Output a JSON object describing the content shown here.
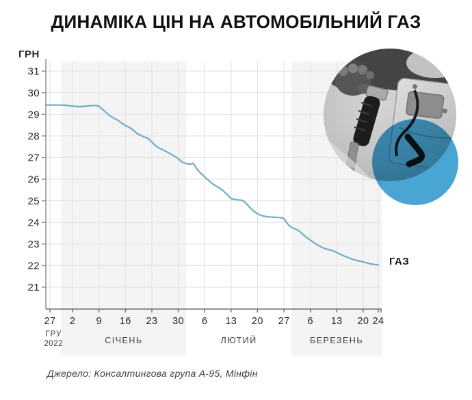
{
  "title": "ДИНАМІКА ЦІН НА АВТОМОБІЛЬНИЙ ГАЗ",
  "source": "Джерело: Консалтингова група А-95, Мінфін",
  "colors": {
    "line": "#74aac8",
    "band": "#f4f4f5",
    "grid": "#e4e4e6",
    "axis_y": "#8a8a8a",
    "axis_x": "#6e6e6e",
    "tick_text": "#242424",
    "month_text": "#3c3c3c",
    "accent_circle": "#3fa0d2"
  },
  "chart_data": {
    "type": "line",
    "title": "ДИНАМІКА ЦІН НА АВТОМОБІЛЬНИЙ ГАЗ",
    "xlabel": "",
    "ylabel": "ГРН",
    "series_label": "ГАЗ",
    "ylim": [
      20,
      31.5
    ],
    "grid": true,
    "y_ticks": [
      21,
      22,
      23,
      24,
      25,
      26,
      27,
      28,
      29,
      30,
      31
    ],
    "x_ticks": [
      {
        "label": "27",
        "day": 0
      },
      {
        "label": "2",
        "day": 6
      },
      {
        "label": "9",
        "day": 13
      },
      {
        "label": "16",
        "day": 20
      },
      {
        "label": "23",
        "day": 27
      },
      {
        "label": "30",
        "day": 34
      },
      {
        "label": "6",
        "day": 41
      },
      {
        "label": "13",
        "day": 48
      },
      {
        "label": "20",
        "day": 55
      },
      {
        "label": "27",
        "day": 62
      },
      {
        "label": "6",
        "day": 69
      },
      {
        "label": "13",
        "day": 76
      },
      {
        "label": "20",
        "day": 83
      },
      {
        "label": "24",
        "day": 87
      }
    ],
    "months": [
      {
        "label": "ГРУ",
        "sublabel": "2022",
        "start_day": -1.1,
        "end_day": 3,
        "shaded": false
      },
      {
        "label": "СІЧЕНЬ",
        "start_day": 3,
        "end_day": 36.1,
        "shaded": true
      },
      {
        "label": "ЛЮТИЙ",
        "start_day": 36.1,
        "end_day": 64,
        "shaded": false
      },
      {
        "label": "БЕРЕЗЕНЬ",
        "start_day": 64,
        "end_day": 87.9,
        "shaded": true
      }
    ],
    "points": [
      [
        -1.1,
        29.43
      ],
      [
        0,
        29.43
      ],
      [
        2,
        29.43
      ],
      [
        4,
        29.42
      ],
      [
        6,
        29.38
      ],
      [
        8,
        29.35
      ],
      [
        10,
        29.39
      ],
      [
        12,
        29.41
      ],
      [
        13,
        29.38
      ],
      [
        14,
        29.22
      ],
      [
        15,
        29.06
      ],
      [
        16,
        28.92
      ],
      [
        17,
        28.82
      ],
      [
        18,
        28.72
      ],
      [
        19,
        28.6
      ],
      [
        20,
        28.48
      ],
      [
        21,
        28.4
      ],
      [
        22,
        28.28
      ],
      [
        23,
        28.12
      ],
      [
        24,
        28.03
      ],
      [
        25,
        27.95
      ],
      [
        26,
        27.89
      ],
      [
        27,
        27.72
      ],
      [
        28,
        27.54
      ],
      [
        29,
        27.43
      ],
      [
        30,
        27.35
      ],
      [
        31,
        27.26
      ],
      [
        32,
        27.16
      ],
      [
        33,
        27.06
      ],
      [
        34,
        26.95
      ],
      [
        35,
        26.79
      ],
      [
        36,
        26.72
      ],
      [
        37,
        26.69
      ],
      [
        38,
        26.73
      ],
      [
        39,
        26.45
      ],
      [
        40,
        26.27
      ],
      [
        41,
        26.1
      ],
      [
        42,
        25.95
      ],
      [
        43,
        25.8
      ],
      [
        44,
        25.68
      ],
      [
        45,
        25.58
      ],
      [
        46,
        25.45
      ],
      [
        47,
        25.28
      ],
      [
        48,
        25.1
      ],
      [
        49,
        25.06
      ],
      [
        50,
        25.04
      ],
      [
        51,
        25.02
      ],
      [
        52,
        24.88
      ],
      [
        53,
        24.68
      ],
      [
        54,
        24.52
      ],
      [
        55,
        24.4
      ],
      [
        56,
        24.32
      ],
      [
        57,
        24.28
      ],
      [
        58,
        24.25
      ],
      [
        59,
        24.24
      ],
      [
        60,
        24.23
      ],
      [
        61,
        24.22
      ],
      [
        62,
        24.18
      ],
      [
        63,
        23.92
      ],
      [
        64,
        23.76
      ],
      [
        65,
        23.7
      ],
      [
        66,
        23.6
      ],
      [
        67,
        23.45
      ],
      [
        68,
        23.3
      ],
      [
        69,
        23.18
      ],
      [
        70,
        23.05
      ],
      [
        71,
        22.95
      ],
      [
        72,
        22.85
      ],
      [
        73,
        22.78
      ],
      [
        74,
        22.73
      ],
      [
        75,
        22.68
      ],
      [
        76,
        22.6
      ],
      [
        77,
        22.52
      ],
      [
        78,
        22.44
      ],
      [
        79,
        22.37
      ],
      [
        80,
        22.3
      ],
      [
        81,
        22.25
      ],
      [
        82,
        22.21
      ],
      [
        83,
        22.17
      ],
      [
        84,
        22.12
      ],
      [
        85,
        22.08
      ],
      [
        86,
        22.05
      ],
      [
        87,
        22.03
      ]
    ]
  }
}
